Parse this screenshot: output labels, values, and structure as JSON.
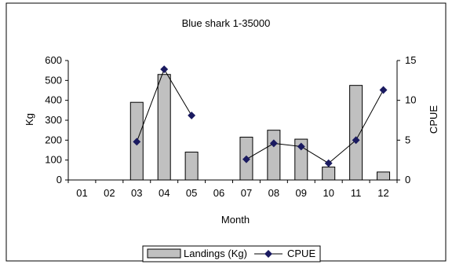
{
  "chart_data": {
    "type": "bar",
    "title": "Blue shark 1-35000",
    "xlabel": "Month",
    "ylabel": "Kg",
    "y2label": "CPUE",
    "categories": [
      "01",
      "02",
      "03",
      "04",
      "05",
      "06",
      "07",
      "08",
      "09",
      "10",
      "11",
      "12"
    ],
    "ylim": [
      0,
      600
    ],
    "y2lim": [
      0,
      15
    ],
    "yticks": [
      "0",
      "100",
      "200",
      "300",
      "400",
      "500",
      "600"
    ],
    "y2ticks": [
      "0",
      "5",
      "10",
      "15"
    ],
    "series": [
      {
        "name": "Landings (Kg)",
        "type": "bar",
        "axis": "left",
        "values": [
          0,
          0,
          390,
          530,
          140,
          0,
          215,
          250,
          205,
          65,
          475,
          40
        ]
      },
      {
        "name": "CPUE",
        "type": "line",
        "axis": "right",
        "segments": [
          [
            [
              3,
              4.8
            ],
            [
              4,
              13.9
            ],
            [
              5,
              8.1
            ]
          ],
          [
            [
              7,
              2.6
            ],
            [
              8,
              4.6
            ],
            [
              9,
              4.2
            ],
            [
              10,
              2.1
            ],
            [
              11,
              5.0
            ],
            [
              12,
              11.3
            ]
          ]
        ]
      }
    ],
    "grid": false,
    "legend": "bottom"
  },
  "colors": {
    "bar_fill": "#c0c0c0",
    "bar_stroke": "#000000",
    "line": "#000000",
    "marker": "#1a1a60"
  }
}
